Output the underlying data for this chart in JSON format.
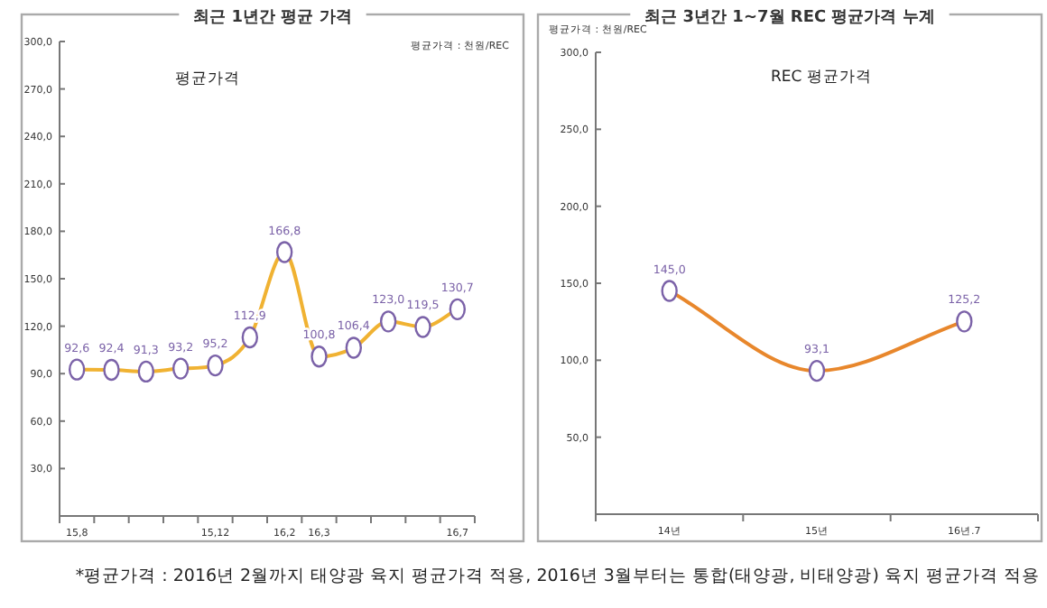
{
  "chart_data": [
    {
      "type": "line",
      "title": "최근 1년간 평균 가격",
      "subtitle": "평균가격",
      "annotations": [
        "평균가격 : 천원/REC",
        "*평균가격 : 2016년 2월까지 태양광 육지 평균가격 적용, 2016년 3월부터는 통합(태양광, 비태양광) 육지 평균가격 적용"
      ],
      "categories": [
        "15,8",
        null,
        null,
        null,
        "15,12",
        null,
        "16,2",
        "16,3",
        null,
        null,
        null,
        "16,7"
      ],
      "series": [
        {
          "color": "#f0b232",
          "values": [
            92.6,
            92.4,
            91.3,
            93.2,
            95.2,
            112.9,
            166.8,
            100.8,
            106.4,
            123.0,
            119.5,
            130.7
          ],
          "value_labels": [
            "92,6",
            "92,4",
            "91,3",
            "93,2",
            "95,2",
            "112,9",
            "166,8",
            "100,8",
            "106,4",
            "123,0",
            "119,5",
            "130,7"
          ]
        }
      ],
      "ylim": [
        0,
        300
      ],
      "yticks": [
        {
          "value": 30,
          "label": "30,0"
        },
        {
          "value": 60,
          "label": "60,0"
        },
        {
          "value": 90,
          "label": "90,0"
        },
        {
          "value": 120,
          "label": "120,0"
        },
        {
          "value": 150,
          "label": "150,0"
        },
        {
          "value": 180,
          "label": "180,0"
        },
        {
          "value": 210,
          "label": "210,0"
        },
        {
          "value": 240,
          "label": "240,0"
        },
        {
          "value": 270,
          "label": "270,0"
        },
        {
          "value": 300,
          "label": "300,0"
        }
      ],
      "marker": "circle",
      "grid": false
    },
    {
      "type": "line",
      "title": "최근 3년간 1~7월 REC 평균가격 누계",
      "subtitle": "REC 평균가격",
      "annotations": [
        "평균가격 : 천원/REC"
      ],
      "categories": [
        "14년",
        "15년",
        "16년.7"
      ],
      "series": [
        {
          "color": "#e8872c",
          "values": [
            145.0,
            93.1,
            125.2
          ],
          "value_labels": [
            "145,0",
            "93,1",
            "125,2"
          ]
        }
      ],
      "ylim": [
        0,
        300
      ],
      "yticks": [
        {
          "value": 50,
          "label": "50,0"
        },
        {
          "value": 100,
          "label": "100,0"
        },
        {
          "value": 150,
          "label": "150,0"
        },
        {
          "value": 200,
          "label": "200,0"
        },
        {
          "value": 250,
          "label": "250,0"
        },
        {
          "value": 300,
          "label": "300,0"
        }
      ],
      "marker": "circle",
      "grid": false
    }
  ]
}
